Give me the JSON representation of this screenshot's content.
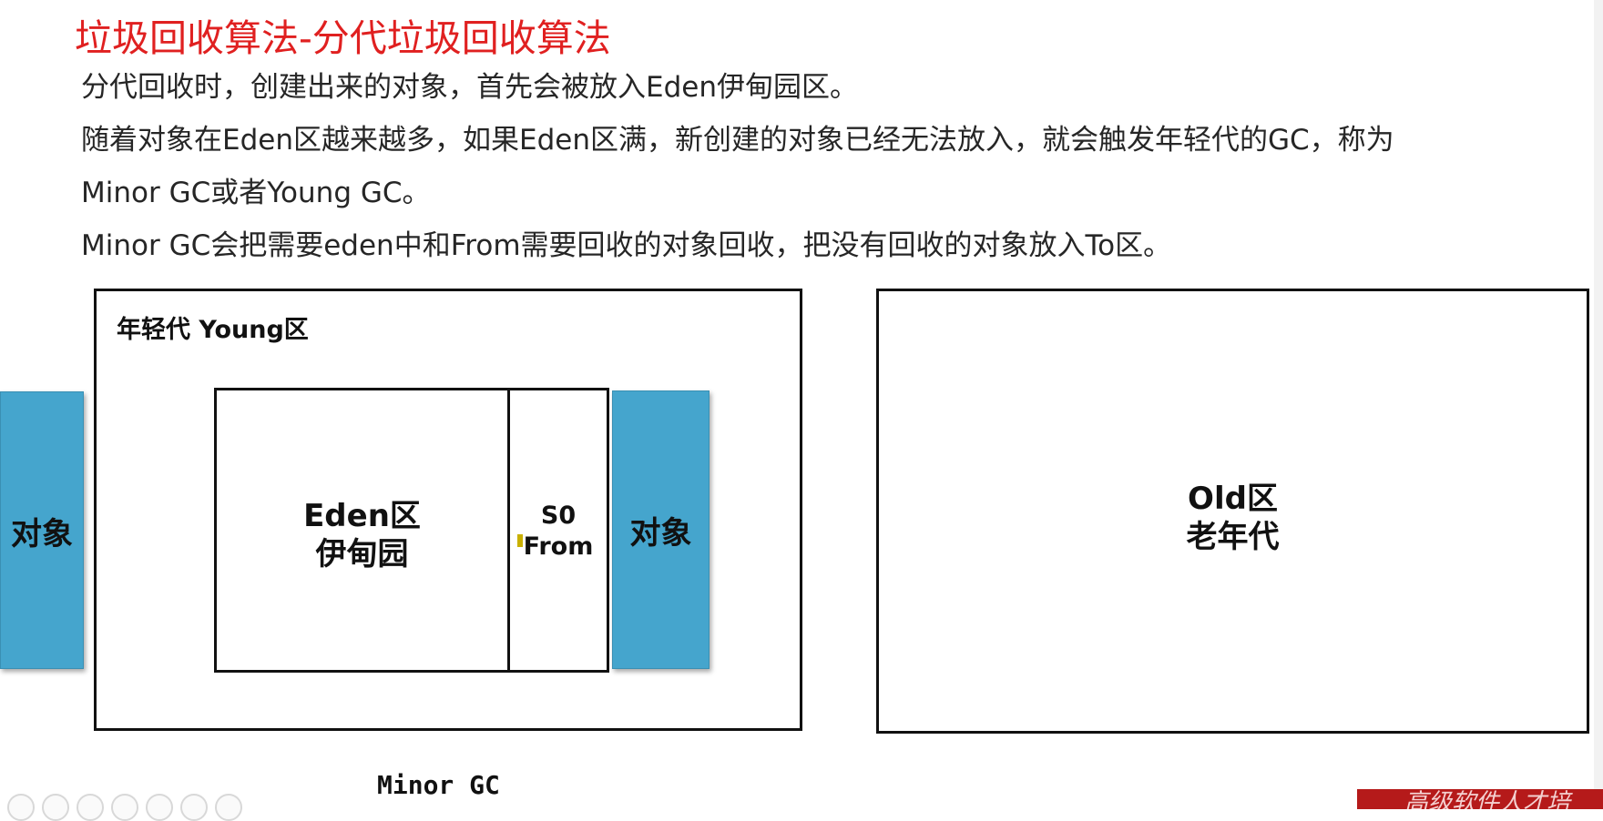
{
  "slide": {
    "title": "垃圾回收算法-分代垃圾回收算法",
    "paragraphs": [
      "分代回收时，创建出来的对象，首先会被放入Eden伊甸园区。",
      "随着对象在Eden区越来越多，如果Eden区满，新创建的对象已经无法放入，就会触发年轻代的GC，称为",
      "Minor GC或者Young GC。",
      "Minor GC会把需要eden中和From需要回收的对象回收，把没有回收的对象放入To区。"
    ]
  },
  "diagram": {
    "young_label": "年轻代 Young区",
    "eden_line1": "Eden区",
    "eden_line2": "伊甸园",
    "s0_line1": "S0",
    "s0_line2": "From",
    "object_left_label": "对象",
    "object_right_label": "对象",
    "old_line1": "Old区",
    "old_line2": "老年代",
    "caption": "Minor GC"
  },
  "watermark": {
    "text": "高级软件人才培"
  },
  "colors": {
    "title": "#e02020",
    "object_block": "#45a5cd",
    "watermark_bar": "#b51a1a"
  }
}
